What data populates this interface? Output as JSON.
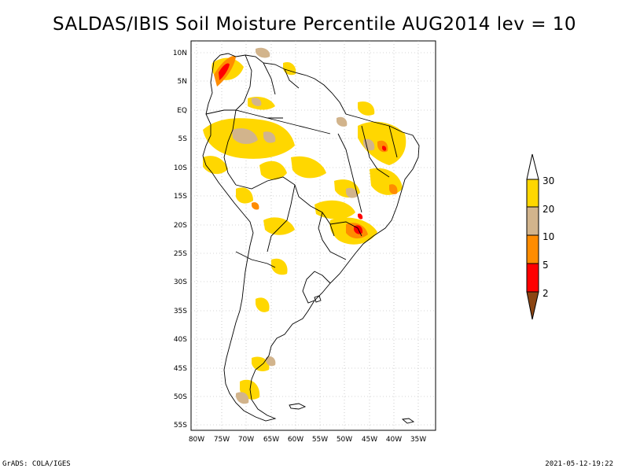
{
  "title": "SALDAS/IBIS Soil Moisture Percentile AUG2014 lev = 10",
  "footer": {
    "left": "GrADS: COLA/IGES",
    "right": "2021-05-12-19:22"
  },
  "map": {
    "lat_labels": [
      "10N",
      "5N",
      "EQ",
      "5S",
      "10S",
      "15S",
      "20S",
      "25S",
      "30S",
      "35S",
      "40S",
      "45S",
      "50S",
      "55S"
    ],
    "lon_labels": [
      "80W",
      "75W",
      "70W",
      "65W",
      "60W",
      "55W",
      "50W",
      "45W",
      "40W",
      "35W"
    ]
  },
  "legend": {
    "labels": [
      "30",
      "20",
      "10",
      "5",
      "2"
    ],
    "colors": {
      "above30": "#ffffff",
      "p20_30": "#ffd700",
      "p10_20": "#d2b48c",
      "p5_10": "#ff8c00",
      "p2_5": "#ff0000",
      "below2": "#8b4513"
    }
  }
}
